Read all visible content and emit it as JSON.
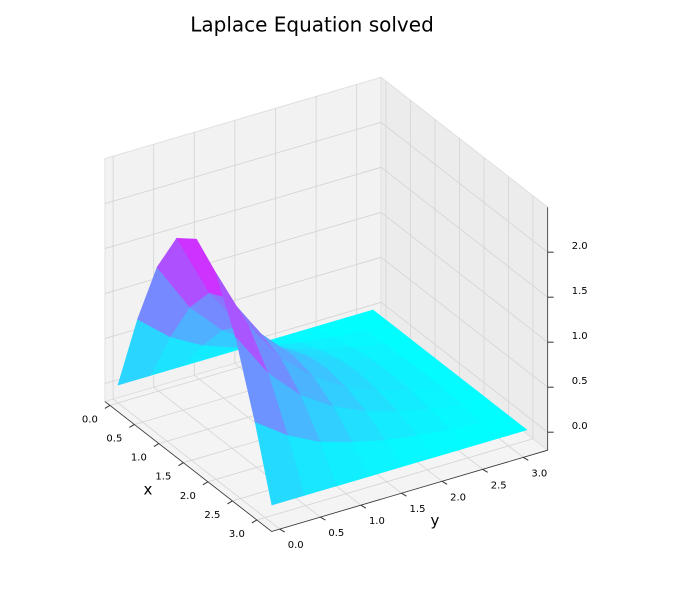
{
  "chart_data": {
    "type": "surface",
    "title": "Laplace Equation solved",
    "xlabel": "x",
    "ylabel": "y",
    "x": [
      0,
      0.4,
      0.8,
      1.2,
      1.6,
      2.0,
      2.4,
      2.8,
      3.14
    ],
    "y": [
      0,
      0.4,
      0.8,
      1.2,
      1.6,
      2.0,
      2.4,
      2.8,
      3.14
    ],
    "z": [
      [
        0,
        0,
        0,
        0,
        0,
        0,
        0,
        0,
        0
      ],
      [
        0.9,
        0.6,
        0.4,
        0.27,
        0.17,
        0.11,
        0.06,
        0.03,
        0
      ],
      [
        1.65,
        1.1,
        0.74,
        0.49,
        0.32,
        0.2,
        0.12,
        0.05,
        0
      ],
      [
        2.14,
        1.43,
        0.95,
        0.63,
        0.41,
        0.26,
        0.15,
        0.06,
        0
      ],
      [
        2.3,
        1.54,
        1.03,
        0.68,
        0.44,
        0.28,
        0.16,
        0.07,
        0
      ],
      [
        2.09,
        1.4,
        0.93,
        0.62,
        0.4,
        0.25,
        0.15,
        0.06,
        0
      ],
      [
        1.55,
        1.04,
        0.69,
        0.46,
        0.3,
        0.19,
        0.11,
        0.05,
        0
      ],
      [
        0.77,
        0.52,
        0.34,
        0.23,
        0.15,
        0.09,
        0.05,
        0.02,
        0
      ],
      [
        0,
        0,
        0,
        0,
        0,
        0,
        0,
        0,
        0
      ]
    ],
    "colormap": "cool",
    "xlim": [
      -0.1,
      3.3
    ],
    "ylim": [
      -0.1,
      3.3
    ],
    "zlim": [
      -0.2,
      2.5
    ],
    "xticks": [
      {
        "value": 0,
        "label": "0.0"
      },
      0.5,
      {
        "value": 1,
        "label": "1.0"
      },
      1.5,
      {
        "value": 2,
        "label": "2.0"
      },
      2.5,
      {
        "value": 3,
        "label": "3.0"
      }
    ],
    "yticks": [
      {
        "value": 0,
        "label": "0.0"
      },
      0.5,
      {
        "value": 1,
        "label": "1.0"
      },
      1.5,
      {
        "value": 2,
        "label": "2.0"
      },
      2.5,
      {
        "value": 3,
        "label": "3.0"
      }
    ],
    "zticks": [
      {
        "value": 0,
        "label": "0.0"
      },
      0.5,
      {
        "value": 1,
        "label": "1.0"
      },
      1.5,
      {
        "value": 2,
        "label": "2.0"
      }
    ],
    "grid": true
  }
}
